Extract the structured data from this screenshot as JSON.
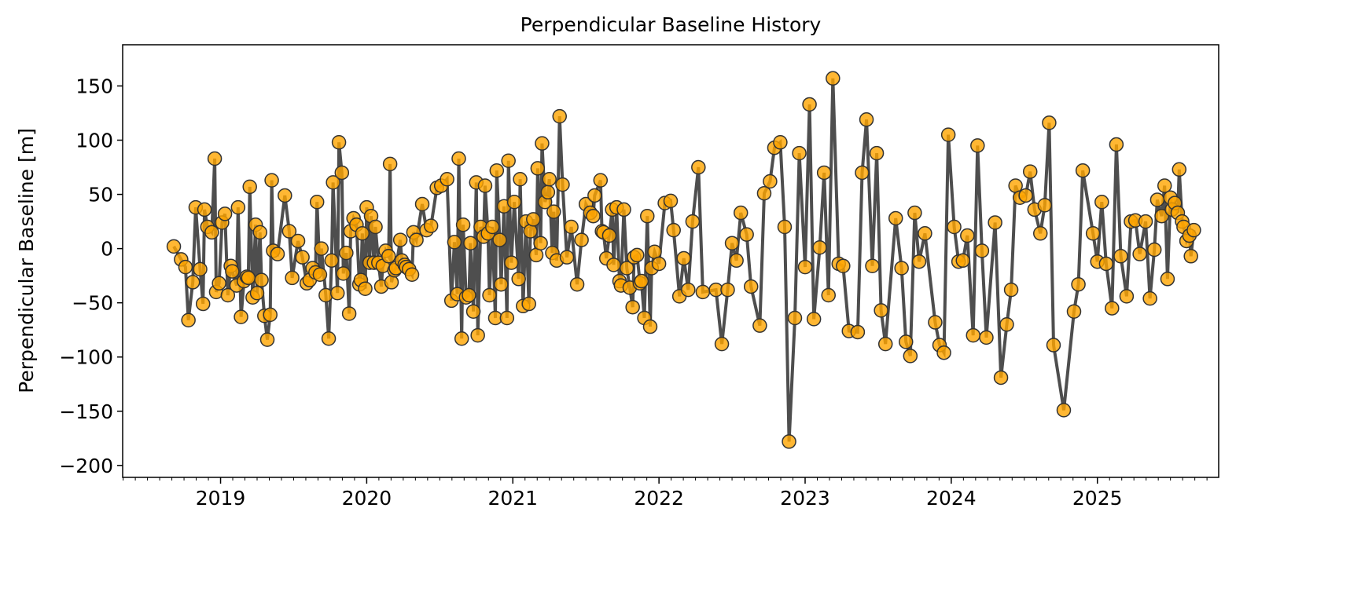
{
  "chart_data": {
    "type": "line",
    "title": "Perpendicular Baseline History",
    "xlabel": "",
    "ylabel": "Perpendicular Baseline [m]",
    "xlim": [
      2018.33,
      2025.83
    ],
    "ylim": [
      -211,
      188
    ],
    "xticks": [
      2019,
      2020,
      2021,
      2022,
      2023,
      2024,
      2025
    ],
    "xtick_labels": [
      "2019",
      "2020",
      "2021",
      "2022",
      "2023",
      "2024",
      "2025"
    ],
    "yticks": [
      150,
      100,
      50,
      0,
      -50,
      -100,
      -150,
      -200
    ],
    "ytick_labels": [
      "150",
      "100",
      "50",
      "0",
      "−50",
      "−100",
      "−150",
      "−200"
    ],
    "grid": false,
    "line_color": "#444444",
    "marker_color": "#ffa500",
    "marker_edge": "#333333",
    "series": [
      {
        "name": "Perpendicular Baseline",
        "x": [
          2018.68,
          2018.73,
          2018.76,
          2018.78,
          2018.81,
          2018.83,
          2018.86,
          2018.88,
          2018.89,
          2018.91,
          2018.94,
          2018.96,
          2018.97,
          2018.99,
          2019.01,
          2019.03,
          2019.05,
          2019.07,
          2019.08,
          2019.11,
          2019.12,
          2019.14,
          2019.16,
          2019.18,
          2019.19,
          2019.2,
          2019.22,
          2019.24,
          2019.25,
          2019.27,
          2019.28,
          2019.3,
          2019.32,
          2019.34,
          2019.35,
          2019.36,
          2019.39,
          2019.44,
          2019.47,
          2019.49,
          2019.53,
          2019.56,
          2019.59,
          2019.61,
          2019.63,
          2019.65,
          2019.66,
          2019.68,
          2019.69,
          2019.72,
          2019.74,
          2019.76,
          2019.77,
          2019.8,
          2019.81,
          2019.83,
          2019.84,
          2019.86,
          2019.88,
          2019.89,
          2019.91,
          2019.93,
          2019.95,
          2019.96,
          2019.97,
          2019.99,
          2020.0,
          2020.02,
          2020.03,
          2020.05,
          2020.06,
          2020.08,
          2020.1,
          2020.11,
          2020.13,
          2020.15,
          2020.16,
          2020.17,
          2020.19,
          2020.2,
          2020.23,
          2020.24,
          2020.26,
          2020.27,
          2020.29,
          2020.31,
          2020.32,
          2020.34,
          2020.38,
          2020.41,
          2020.44,
          2020.48,
          2020.51,
          2020.55,
          2020.58,
          2020.6,
          2020.62,
          2020.63,
          2020.65,
          2020.66,
          2020.68,
          2020.7,
          2020.71,
          2020.73,
          2020.75,
          2020.76,
          2020.78,
          2020.8,
          2020.81,
          2020.83,
          2020.84,
          2020.86,
          2020.88,
          2020.89,
          2020.91,
          2020.92,
          2020.94,
          2020.96,
          2020.97,
          2020.99,
          2021.01,
          2021.04,
          2021.05,
          2021.07,
          2021.09,
          2021.11,
          2021.12,
          2021.14,
          2021.16,
          2021.17,
          2021.19,
          2021.2,
          2021.22,
          2021.24,
          2021.25,
          2021.27,
          2021.28,
          2021.3,
          2021.32,
          2021.34,
          2021.37,
          2021.4,
          2021.44,
          2021.47,
          2021.5,
          2021.53,
          2021.55,
          2021.56,
          2021.6,
          2021.61,
          2021.62,
          2021.64,
          2021.66,
          2021.68,
          2021.69,
          2021.71,
          2021.73,
          2021.74,
          2021.76,
          2021.78,
          2021.8,
          2021.82,
          2021.83,
          2021.85,
          2021.87,
          2021.88,
          2021.9,
          2021.92,
          2021.94,
          2021.95,
          2021.97,
          2022.0,
          2022.04,
          2022.08,
          2022.1,
          2022.14,
          2022.17,
          2022.2,
          2022.23,
          2022.27,
          2022.3,
          2022.39,
          2022.43,
          2022.47,
          2022.5,
          2022.53,
          2022.56,
          2022.6,
          2022.63,
          2022.69,
          2022.72,
          2022.76,
          2022.79,
          2022.83,
          2022.86,
          2022.89,
          2022.93,
          2022.96,
          2023.0,
          2023.03,
          2023.06,
          2023.1,
          2023.13,
          2023.16,
          2023.19,
          2023.23,
          2023.26,
          2023.3,
          2023.36,
          2023.39,
          2023.42,
          2023.46,
          2023.49,
          2023.52,
          2023.55,
          2023.62,
          2023.66,
          2023.69,
          2023.72,
          2023.75,
          2023.78,
          2023.82,
          2023.89,
          2023.92,
          2023.95,
          2023.98,
          2024.02,
          2024.05,
          2024.08,
          2024.11,
          2024.15,
          2024.18,
          2024.21,
          2024.24,
          2024.3,
          2024.34,
          2024.38,
          2024.41,
          2024.44,
          2024.47,
          2024.51,
          2024.54,
          2024.57,
          2024.61,
          2024.64,
          2024.67,
          2024.7,
          2024.77,
          2024.84,
          2024.87,
          2024.9,
          2024.97,
          2025.0,
          2025.03,
          2025.06,
          2025.1,
          2025.13,
          2025.16,
          2025.2,
          2025.23,
          2025.26,
          2025.29,
          2025.33,
          2025.36,
          2025.39,
          2025.41,
          2025.44,
          2025.46,
          2025.48,
          2025.5,
          2025.51,
          2025.53,
          2025.55,
          2025.56,
          2025.58,
          2025.59,
          2025.61,
          2025.63,
          2025.64,
          2025.66
        ],
        "y": [
          2,
          -10,
          -17,
          -66,
          -31,
          38,
          -19,
          -51,
          36,
          20,
          15,
          83,
          -40,
          -32,
          24,
          32,
          -43,
          -16,
          -21,
          -34,
          38,
          -63,
          -30,
          -26,
          -27,
          57,
          -45,
          22,
          -41,
          15,
          -29,
          -62,
          -84,
          -61,
          63,
          -2,
          -5,
          49,
          16,
          -27,
          7,
          -8,
          -32,
          -29,
          -18,
          -22,
          43,
          -24,
          0,
          -43,
          -83,
          -11,
          61,
          -41,
          98,
          70,
          -23,
          -4,
          -60,
          16,
          28,
          22,
          -33,
          -29,
          14,
          -37,
          38,
          -13,
          30,
          -13,
          20,
          -13,
          -35,
          -16,
          -2,
          -7,
          78,
          -31,
          -20,
          -18,
          8,
          -11,
          -15,
          -17,
          -19,
          -24,
          15,
          8,
          41,
          17,
          21,
          56,
          58,
          64,
          -48,
          6,
          -42,
          83,
          -83,
          22,
          -45,
          -43,
          5,
          -58,
          61,
          -80,
          20,
          11,
          58,
          14,
          -43,
          20,
          -64,
          72,
          8,
          -33,
          39,
          -64,
          81,
          -13,
          43,
          -28,
          64,
          -53,
          25,
          -51,
          16,
          27,
          -6,
          74,
          5,
          97,
          43,
          52,
          64,
          -4,
          34,
          -11,
          122,
          59,
          -8,
          20,
          -33,
          8,
          41,
          33,
          30,
          49,
          63,
          16,
          15,
          -9,
          12,
          36,
          -15,
          38,
          -30,
          -34,
          36,
          -18,
          -36,
          -54,
          -8,
          -6,
          -32,
          -30,
          -64,
          30,
          -72,
          -18,
          -3,
          -14,
          42,
          44,
          17,
          -44,
          -9,
          -38,
          25,
          75,
          -40,
          -38,
          -88,
          -38,
          5,
          -11,
          33,
          13,
          -35,
          -71,
          51,
          62,
          93,
          98,
          20,
          -178,
          -64,
          88,
          -17,
          133,
          -65,
          1,
          70,
          -43,
          157,
          -14,
          -16,
          -76,
          -77,
          70,
          119,
          -16,
          88,
          -57,
          -88,
          28,
          -18,
          -86,
          -99,
          33,
          -12,
          14,
          -68,
          -89,
          -96,
          105,
          20,
          -12,
          -11,
          12,
          -80,
          95,
          -2,
          -82,
          24,
          -119,
          -70,
          -38,
          58,
          47,
          49,
          71,
          36,
          14,
          40,
          116,
          -89,
          -149,
          -58,
          -33,
          72,
          14,
          -12,
          43,
          -14,
          -55,
          96,
          -7,
          -44,
          25,
          26,
          -5,
          25,
          -46,
          -1,
          45,
          30,
          58,
          -28,
          47,
          36,
          42,
          33,
          73,
          25,
          20,
          7,
          12,
          -7,
          17
        ]
      }
    ]
  }
}
